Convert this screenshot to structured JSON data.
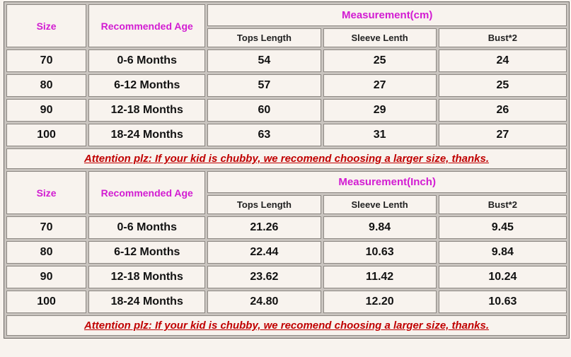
{
  "table_cm": {
    "size_header": "Size",
    "age_header": "Recommended Age",
    "measure_header": "Measurement(cm)",
    "sub_headers": [
      "Tops Length",
      "Sleeve Lenth",
      "Bust*2"
    ],
    "rows": [
      [
        "70",
        "0-6 Months",
        "54",
        "25",
        "24"
      ],
      [
        "80",
        "6-12 Months",
        "57",
        "27",
        "25"
      ],
      [
        "90",
        "12-18 Months",
        "60",
        "29",
        "26"
      ],
      [
        "100",
        "18-24 Months",
        "63",
        "31",
        "27"
      ]
    ],
    "note": "Attention plz: If your kid is chubby, we recomend choosing a larger size, thanks."
  },
  "table_inch": {
    "size_header": "Size",
    "age_header": "Recommended Age",
    "measure_header": "Measurement(Inch)",
    "sub_headers": [
      "Tops Length",
      "Sleeve Lenth",
      "Bust*2"
    ],
    "rows": [
      [
        "70",
        "0-6 Months",
        "21.26",
        "9.84",
        "9.45"
      ],
      [
        "80",
        "6-12 Months",
        "22.44",
        "10.63",
        "9.84"
      ],
      [
        "90",
        "12-18 Months",
        "23.62",
        "11.42",
        "10.24"
      ],
      [
        "100",
        "18-24 Months",
        "24.80",
        "12.20",
        "10.63"
      ]
    ],
    "note": "Attention plz: If your kid is chubby, we recomend choosing a larger size, thanks."
  },
  "colors": {
    "header_text": "#d21cd2",
    "note_text": "#c00000",
    "background": "#f8f3ee"
  }
}
